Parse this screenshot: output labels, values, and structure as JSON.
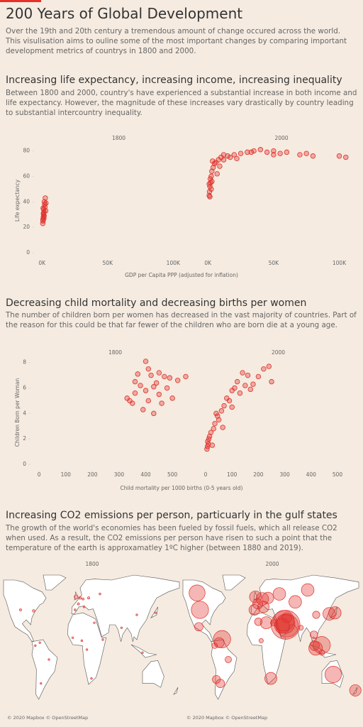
{
  "header": {
    "title": "200 Years of Global Development",
    "intro": "Over the 19th and 20th century a tremendous amount of change occured across the world. This visulisation aims to ouline some of the most important changes by comparing important development metrics of countrys in 1800 and 2000."
  },
  "sections": [
    {
      "heading": "Increasing life expectancy, increasing income, increasing inequality",
      "text": "Between 1800 and 2000, country's have experienced a substantial increase in both income and life expectancy. However, the magnitude of these increases vary drastically by country leading to substantial intercountry inequality."
    },
    {
      "heading": "Decreasing child mortality and decreasing births per women",
      "text": "The number of children born per women has decreased in the vast majority of countries. Part of the reason for this could be that far fewer of the children who are born die at a young age."
    },
    {
      "heading": "Increasing CO2 emissions per person, particuarly in the gulf states",
      "text": "The growth of the world's economies has been fueled by fossil fuels, which all release CO2 when used. As a result, the CO2 emissions per person have risen to such a point that the temperature of the earth is approxamatley 1ºC higher (between 1880 and 2019)."
    }
  ],
  "chart_data": [
    {
      "type": "scatter",
      "title": "1800",
      "xlabel": "GDP per Capita PPP (adjusted for inflation)",
      "ylabel": "Life expectancy",
      "color": "#e0312b",
      "xlim": [
        -5000,
        122000
      ],
      "xticks": [
        {
          "value": 0,
          "label": "0K"
        },
        {
          "value": 50000,
          "label": "50K"
        },
        {
          "value": 100000,
          "label": "100K"
        }
      ],
      "ylim": [
        -5,
        87
      ],
      "yticks": [
        0,
        20,
        40,
        60,
        80
      ],
      "x": [
        800,
        1000,
        1200,
        1500,
        900,
        2000,
        1800,
        2500,
        1100,
        700,
        1300,
        3000,
        1600,
        2200,
        600,
        1400,
        2800
      ],
      "values": [
        25,
        28,
        30,
        32,
        35,
        38,
        40,
        43,
        31,
        26,
        34,
        39,
        29,
        36,
        23,
        27,
        33
      ]
    },
    {
      "type": "scatter",
      "title": "2000",
      "color": "#e0312b",
      "xlim": [
        -5000,
        117000
      ],
      "xticks": [
        {
          "value": 0,
          "label": "0K"
        },
        {
          "value": 50000,
          "label": "50K"
        },
        {
          "value": 100000,
          "label": "100K"
        }
      ],
      "ylim": [
        -5,
        87
      ],
      "x": [
        1000,
        1200,
        1500,
        2000,
        1800,
        2500,
        3000,
        4000,
        5000,
        3500,
        6000,
        8000,
        10000,
        12000,
        15000,
        20000,
        25000,
        30000,
        35000,
        40000,
        45000,
        50000,
        55000,
        60000,
        70000,
        75000,
        80000,
        100000,
        105000,
        1500,
        2500,
        3000,
        7000,
        9000,
        12000,
        17000,
        33000,
        50000,
        22000,
        1000
      ],
      "values": [
        45,
        48,
        52,
        55,
        58,
        60,
        64,
        67,
        70,
        72,
        71,
        73,
        75,
        77,
        76,
        77,
        78,
        79,
        80,
        81,
        79,
        80,
        78,
        79,
        77,
        78,
        76,
        76,
        75,
        44,
        50,
        56,
        62,
        68,
        73,
        75,
        79,
        77,
        74,
        54
      ]
    },
    {
      "type": "scatter",
      "title": "1800",
      "xlabel": "Child mortality per 1000 births (0-5 years old)",
      "ylabel": "Children Born per Woman",
      "color": "#e0312b",
      "xlim": [
        -27,
        598
      ],
      "xticks": [
        0,
        100,
        200,
        300,
        400,
        500
      ],
      "ylim": [
        -0.45,
        8.6
      ],
      "yticks": [
        0,
        2,
        4,
        6,
        8
      ],
      "x": [
        330,
        350,
        360,
        380,
        400,
        420,
        440,
        450,
        470,
        480,
        500,
        390,
        430,
        410,
        400,
        520,
        550,
        460,
        370,
        340,
        490,
        430,
        410,
        450,
        360
      ],
      "values": [
        5.2,
        4.8,
        6.5,
        6.2,
        5.8,
        7.0,
        6.4,
        5.5,
        6.9,
        6.0,
        5.2,
        4.3,
        4.0,
        7.5,
        8.1,
        6.6,
        6.9,
        4.8,
        7.1,
        5.0,
        6.8,
        6.1,
        5.0,
        7.2,
        5.6
      ]
    },
    {
      "type": "scatter",
      "title": "2000",
      "color": "#e0312b",
      "xlim": [
        -27,
        578
      ],
      "xticks": [
        0,
        100,
        200,
        300,
        400,
        500
      ],
      "ylim": [
        -0.45,
        8.6
      ],
      "x": [
        5,
        7,
        10,
        8,
        12,
        20,
        25,
        30,
        35,
        40,
        50,
        60,
        70,
        80,
        90,
        100,
        110,
        120,
        130,
        150,
        160,
        180,
        200,
        220,
        240,
        250,
        15,
        45,
        65,
        100,
        140,
        170
      ],
      "values": [
        1.2,
        1.4,
        1.6,
        1.8,
        2.0,
        2.5,
        1.5,
        2.8,
        3.2,
        4.0,
        3.5,
        4.2,
        4.6,
        5.2,
        5.0,
        5.8,
        6.0,
        6.5,
        5.6,
        6.2,
        7.0,
        6.3,
        6.9,
        7.5,
        7.7,
        6.5,
        2.2,
        3.8,
        2.9,
        4.5,
        7.2,
        5.9
      ]
    },
    {
      "type": "bubble-map",
      "title": "1800",
      "color": "#e0312b",
      "attribution": "© 2020 Mapbox © OpenStreetMap",
      "lon": [
        -2,
        -77,
        5,
        2,
        10,
        20,
        12,
        -4,
        40,
        -100,
        -50,
        -64,
        -74,
        30,
        8,
        25,
        78,
        105,
        138,
        115,
        -8,
        17,
        45,
        -66
      ],
      "lat": [
        53,
        39,
        52,
        46,
        51,
        52,
        43,
        40,
        56,
        40,
        -10,
        -34,
        4,
        27,
        9,
        -29,
        22,
        35,
        37,
        -3,
        12,
        0,
        10,
        7
      ],
      "values": [
        0.5,
        0.1,
        0.1,
        0.05,
        0.05,
        0.05,
        0.02,
        0.02,
        0.02,
        0.05,
        0.01,
        0.01,
        0.01,
        0.01,
        0.01,
        0.01,
        0.01,
        0.01,
        0.01,
        0.01,
        0.01,
        0.01,
        0.01,
        0.01
      ]
    },
    {
      "type": "bubble-map",
      "title": "2000",
      "color": "#e0312b",
      "attribution": "© 2020 Mapbox © OpenStreetMap",
      "lon": [
        -100,
        -105,
        -102,
        -50,
        -64,
        -71,
        -66,
        -74,
        -2,
        2,
        10,
        20,
        -4,
        12,
        40,
        90,
        68,
        45,
        54,
        51,
        48,
        50.5,
        53,
        30,
        17,
        3,
        25,
        8,
        78,
        105,
        138,
        128,
        135,
        174,
        115,
        102,
        101,
        -61,
        114.7,
        104
      ],
      "lat": [
        40,
        57,
        23,
        -10,
        -34,
        -30,
        7,
        4,
        53,
        46,
        51,
        52,
        40,
        43,
        56,
        60,
        48,
        24,
        24,
        25,
        29,
        26,
        32,
        27,
        27,
        28,
        -29,
        9,
        22,
        35,
        37,
        36,
        -25,
        -41,
        -3,
        4,
        15,
        10.5,
        4.5,
        1.3
      ],
      "values": [
        20,
        17,
        4,
        2,
        4,
        3.5,
        6,
        1.5,
        9,
        6,
        10,
        8,
        7,
        8,
        10,
        10,
        10,
        15,
        35,
        60,
        30,
        25,
        6,
        2,
        9,
        3,
        9,
        0.7,
        1,
        2.7,
        9.6,
        10,
        18,
        8,
        1.3,
        5.5,
        3,
        20,
        20,
        12
      ]
    }
  ]
}
